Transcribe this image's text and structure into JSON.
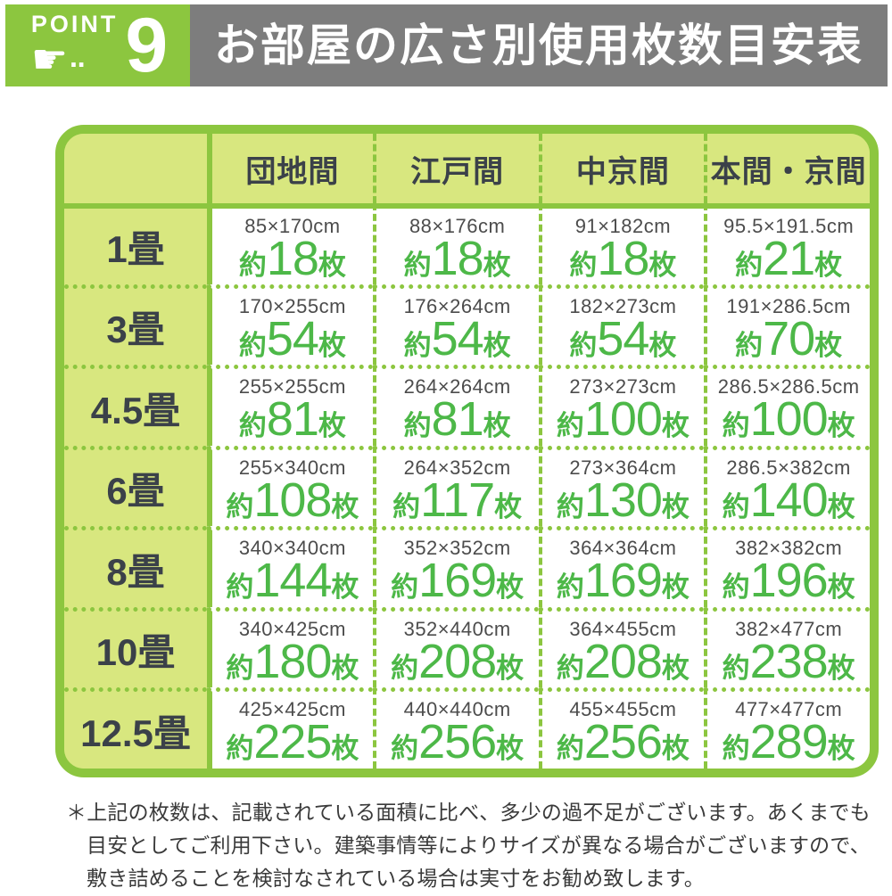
{
  "badge": {
    "label": "POINT",
    "number": "9",
    "hand_icon": "☛",
    "dots": "‥"
  },
  "title": "お部屋の広さ別使用枚数目安表",
  "footnote": "＊上記の枚数は、記載されている面積に比べ、多少の過不足がございます。あくまでも目安としてご利用下さい。建築事情等によりサイズが異なる場合がございますので、敷き詰めることを検討なされている場合は実寸をお勧め致します。",
  "colors": {
    "frame_green": "#8cc63f",
    "cell_light_green": "#d8e77f",
    "count_green": "#4db848",
    "title_bar_gray": "#7d7d7d",
    "label_text": "#3b4149"
  },
  "chart_data": {
    "type": "table",
    "title": "お部屋の広さ別使用枚数目安表",
    "approx_prefix": "約",
    "count_suffix": "枚",
    "columns": [
      "団地間",
      "江戸間",
      "中京間",
      "本間・京間"
    ],
    "rows": [
      {
        "label": "1畳",
        "cells": [
          {
            "size": "85×170cm",
            "count": "18"
          },
          {
            "size": "88×176cm",
            "count": "18"
          },
          {
            "size": "91×182cm",
            "count": "18"
          },
          {
            "size": "95.5×191.5cm",
            "count": "21"
          }
        ]
      },
      {
        "label": "3畳",
        "cells": [
          {
            "size": "170×255cm",
            "count": "54"
          },
          {
            "size": "176×264cm",
            "count": "54"
          },
          {
            "size": "182×273cm",
            "count": "54"
          },
          {
            "size": "191×286.5cm",
            "count": "70"
          }
        ]
      },
      {
        "label": "4.5畳",
        "cells": [
          {
            "size": "255×255cm",
            "count": "81"
          },
          {
            "size": "264×264cm",
            "count": "81"
          },
          {
            "size": "273×273cm",
            "count": "100"
          },
          {
            "size": "286.5×286.5cm",
            "count": "100"
          }
        ]
      },
      {
        "label": "6畳",
        "cells": [
          {
            "size": "255×340cm",
            "count": "108"
          },
          {
            "size": "264×352cm",
            "count": "117"
          },
          {
            "size": "273×364cm",
            "count": "130"
          },
          {
            "size": "286.5×382cm",
            "count": "140"
          }
        ]
      },
      {
        "label": "8畳",
        "cells": [
          {
            "size": "340×340cm",
            "count": "144"
          },
          {
            "size": "352×352cm",
            "count": "169"
          },
          {
            "size": "364×364cm",
            "count": "169"
          },
          {
            "size": "382×382cm",
            "count": "196"
          }
        ]
      },
      {
        "label": "10畳",
        "cells": [
          {
            "size": "340×425cm",
            "count": "180"
          },
          {
            "size": "352×440cm",
            "count": "208"
          },
          {
            "size": "364×455cm",
            "count": "208"
          },
          {
            "size": "382×477cm",
            "count": "238"
          }
        ]
      },
      {
        "label": "12.5畳",
        "cells": [
          {
            "size": "425×425cm",
            "count": "225"
          },
          {
            "size": "440×440cm",
            "count": "256"
          },
          {
            "size": "455×455cm",
            "count": "256"
          },
          {
            "size": "477×477cm",
            "count": "289"
          }
        ]
      }
    ]
  }
}
